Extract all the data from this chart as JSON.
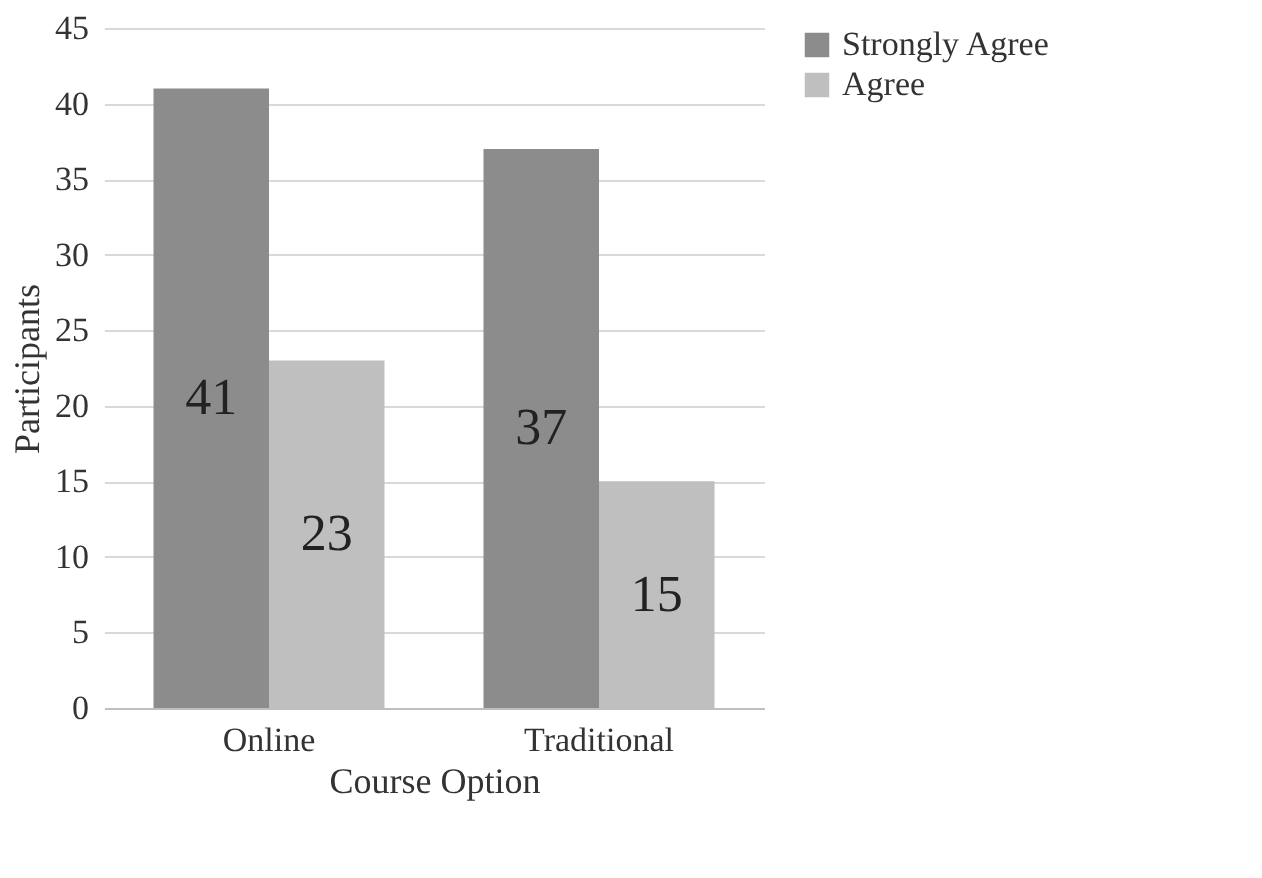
{
  "chart_data": {
    "type": "bar",
    "xlabel": "Course Option",
    "ylabel": "Participants",
    "categories": [
      "Online",
      "Traditional"
    ],
    "series": [
      {
        "name": "Strongly Agree",
        "color": "#8c8c8c",
        "values": [
          41,
          37
        ]
      },
      {
        "name": "Agree",
        "color": "#bfbfbf",
        "values": [
          23,
          15
        ]
      }
    ],
    "ylim": [
      0,
      45
    ],
    "yticks": [
      0,
      5,
      10,
      15,
      20,
      25,
      30,
      35,
      40,
      45
    ],
    "grid": "y",
    "legend": "right",
    "data_labels": true
  }
}
